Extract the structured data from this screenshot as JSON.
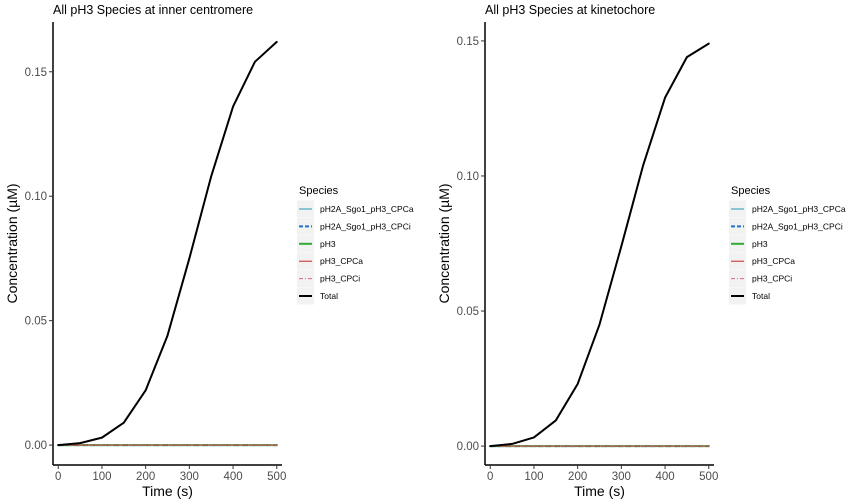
{
  "chart_data": [
    {
      "type": "line",
      "title": "All pH3 Species at inner centromere",
      "xlabel": "Time (s)",
      "ylabel": "Concentration (µM)",
      "xlim": [
        -12,
        512
      ],
      "ylim": [
        -0.008,
        0.17
      ],
      "x_ticks": [
        0,
        100,
        200,
        300,
        400,
        500
      ],
      "x_tick_labels": [
        "0",
        "100",
        "200",
        "300",
        "400",
        "500"
      ],
      "y_ticks": [
        0,
        0.05,
        0.1,
        0.15
      ],
      "y_tick_labels": [
        "0.00",
        "0.05",
        "0.10",
        "0.15"
      ],
      "grid": false,
      "legend_title": "Species",
      "legend_position": "right",
      "x": [
        0,
        50,
        100,
        150,
        200,
        250,
        300,
        350,
        400,
        450,
        500
      ],
      "series": [
        {
          "name": "pH2A_Sgo1_pH3_CPCa",
          "color": "#1f9fb8",
          "dash": "solid",
          "width": 1,
          "values": [
            0,
            0,
            0,
            0,
            0,
            0,
            0,
            0,
            0,
            0,
            0
          ]
        },
        {
          "name": "pH2A_Sgo1_pH3_CPCi",
          "color": "#1f6fd1",
          "dash": "dashed",
          "width": 2,
          "values": [
            0,
            0,
            0,
            0,
            0,
            0,
            0,
            0,
            0,
            0,
            0
          ]
        },
        {
          "name": "pH3",
          "color": "#33aa33",
          "dash": "solid",
          "width": 2,
          "values": [
            0,
            0,
            0,
            0,
            0,
            0,
            0,
            0,
            0,
            0,
            0
          ]
        },
        {
          "name": "pH3_CPCa",
          "color": "#cc2222",
          "dash": "solid",
          "width": 1,
          "values": [
            0,
            0,
            0,
            0,
            0,
            0,
            0,
            0,
            0,
            0,
            0
          ]
        },
        {
          "name": "pH3_CPCi",
          "color": "#d9667f",
          "dash": "dashdot",
          "width": 1,
          "values": [
            0,
            0,
            0,
            0,
            0,
            0,
            0,
            0,
            0,
            0,
            0
          ]
        },
        {
          "name": "Total",
          "color": "#000000",
          "dash": "solid",
          "width": 2,
          "values": [
            0,
            0.0008,
            0.003,
            0.009,
            0.022,
            0.044,
            0.075,
            0.108,
            0.136,
            0.154,
            0.162
          ]
        }
      ]
    },
    {
      "type": "line",
      "title": "All pH3 Species at kinetochore",
      "xlabel": "Time (s)",
      "ylabel": "Concentration (µM)",
      "xlim": [
        -12,
        512
      ],
      "ylim": [
        -0.007,
        0.157
      ],
      "x_ticks": [
        0,
        100,
        200,
        300,
        400,
        500
      ],
      "x_tick_labels": [
        "0",
        "100",
        "200",
        "300",
        "400",
        "500"
      ],
      "y_ticks": [
        0,
        0.05,
        0.1,
        0.15
      ],
      "y_tick_labels": [
        "0.00",
        "0.05",
        "0.10",
        "0.15"
      ],
      "grid": false,
      "legend_title": "Species",
      "legend_position": "right",
      "x": [
        0,
        50,
        100,
        150,
        200,
        250,
        300,
        350,
        400,
        450,
        500
      ],
      "series": [
        {
          "name": "pH2A_Sgo1_pH3_CPCa",
          "color": "#1f9fb8",
          "dash": "solid",
          "width": 1,
          "values": [
            0,
            0,
            0,
            0,
            0,
            0,
            0,
            0,
            0,
            0,
            0
          ]
        },
        {
          "name": "pH2A_Sgo1_pH3_CPCi",
          "color": "#1f6fd1",
          "dash": "dashed",
          "width": 2,
          "values": [
            0,
            0,
            0,
            0,
            0,
            0,
            0,
            0,
            0,
            0,
            0
          ]
        },
        {
          "name": "pH3",
          "color": "#33aa33",
          "dash": "solid",
          "width": 2,
          "values": [
            0,
            0,
            0,
            0,
            0,
            0,
            0,
            0,
            0,
            0,
            0
          ]
        },
        {
          "name": "pH3_CPCa",
          "color": "#cc2222",
          "dash": "solid",
          "width": 1,
          "values": [
            0,
            0,
            0,
            0,
            0,
            0,
            0,
            0,
            0,
            0,
            0
          ]
        },
        {
          "name": "pH3_CPCi",
          "color": "#d9667f",
          "dash": "dashdot",
          "width": 1,
          "values": [
            0,
            0,
            0,
            0,
            0,
            0,
            0,
            0,
            0,
            0,
            0
          ]
        },
        {
          "name": "Total",
          "color": "#000000",
          "dash": "solid",
          "width": 2,
          "values": [
            0,
            0.0008,
            0.0032,
            0.0095,
            0.023,
            0.045,
            0.074,
            0.104,
            0.129,
            0.144,
            0.149
          ]
        }
      ]
    }
  ]
}
